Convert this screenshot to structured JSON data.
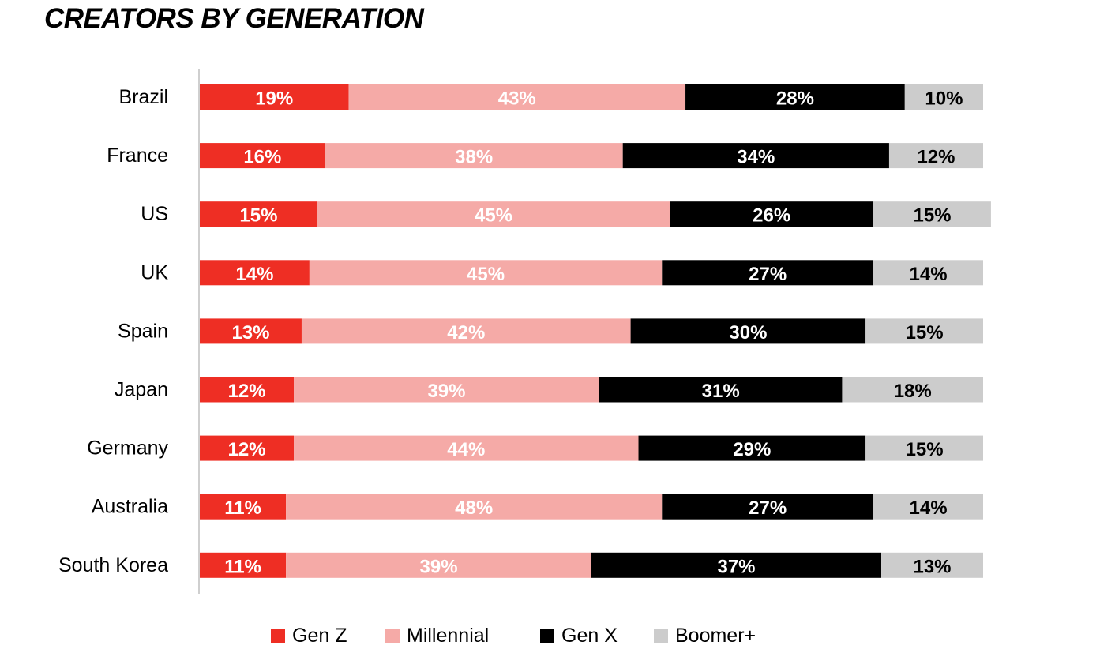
{
  "chart_data": {
    "type": "bar",
    "orientation": "horizontal",
    "stacked": true,
    "title": "CREATORS BY GENERATION",
    "xlabel": "",
    "ylabel": "",
    "xlim": [
      0,
      100
    ],
    "grid": false,
    "legend": "bottom-center",
    "categories": [
      "Brazil",
      "France",
      "US",
      "UK",
      "Spain",
      "Japan",
      "Germany",
      "Australia",
      "South Korea"
    ],
    "series": [
      {
        "name": "Gen Z",
        "color": "#ee2e24",
        "label_color": "#ffffff",
        "values": [
          19,
          16,
          15,
          14,
          13,
          12,
          12,
          11,
          11
        ]
      },
      {
        "name": "Millennial",
        "color": "#f5aaa7",
        "label_color": "#ffffff",
        "values": [
          43,
          38,
          45,
          45,
          42,
          39,
          44,
          48,
          39
        ]
      },
      {
        "name": "Gen X",
        "color": "#000000",
        "label_color": "#ffffff",
        "values": [
          28,
          34,
          26,
          27,
          30,
          31,
          29,
          27,
          37
        ]
      },
      {
        "name": "Boomer+",
        "color": "#cccccc",
        "label_color": "#000000",
        "values": [
          10,
          12,
          15,
          14,
          15,
          18,
          15,
          14,
          13
        ]
      }
    ],
    "value_suffix": "%"
  }
}
